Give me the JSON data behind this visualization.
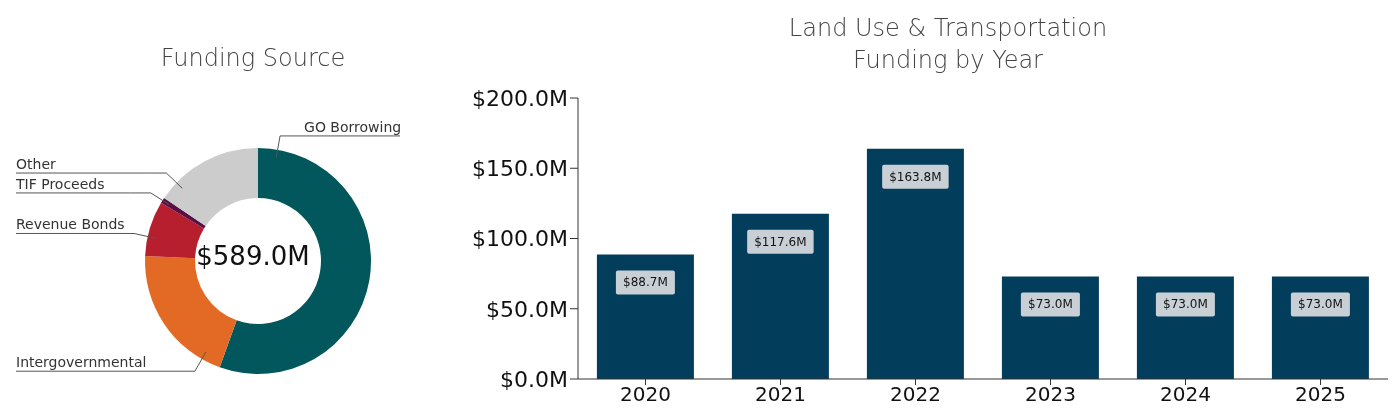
{
  "chart_data": [
    {
      "type": "donut",
      "title": "Funding Source",
      "categories": [
        "GO Borrowing",
        "Intergovernmental",
        "Revenue Bonds",
        "TIF Proceeds",
        "Other"
      ],
      "values": [
        55.5,
        20.2,
        7.9,
        0.8,
        15.6
      ],
      "colors": [
        "#02575c",
        "#e36a25",
        "#b71f2e",
        "#5a0f45",
        "#cccccc"
      ],
      "annotations": [
        "$589.0M"
      ],
      "legend": false
    },
    {
      "type": "bar",
      "title": "Land Use & Transportation Funding by Year",
      "categories": [
        "2020",
        "2021",
        "2022",
        "2023",
        "2024",
        "2025"
      ],
      "values": [
        88.7,
        117.6,
        163.8,
        73.0,
        73.0,
        73.0
      ],
      "color": "#033d5c",
      "value_labels": [
        "$88.7M",
        "$117.6M",
        "$163.8M",
        "$73.0M",
        "$73.0M",
        "$73.0M"
      ],
      "ylim": [
        0,
        200
      ],
      "yticks": [
        {
          "value": 0,
          "label": "$0.0M"
        },
        {
          "value": 50,
          "label": "$50.0M"
        },
        {
          "value": 100,
          "label": "$100.0M"
        },
        {
          "value": 150,
          "label": "$150.0M"
        },
        {
          "value": 200,
          "label": "$200.0M"
        }
      ],
      "grid": false,
      "legend": false
    }
  ]
}
